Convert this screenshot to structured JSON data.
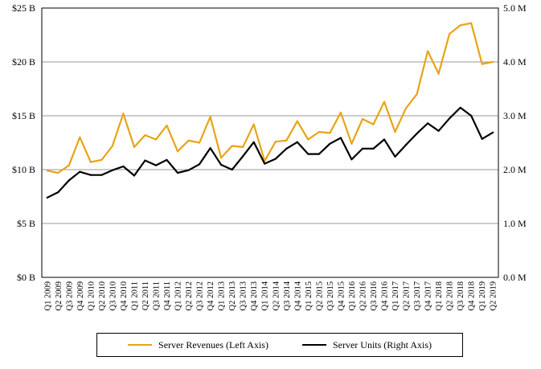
{
  "chart_data": {
    "type": "line",
    "categories": [
      "Q1 2009",
      "Q2 2009",
      "Q3 2009",
      "Q4 2009",
      "Q1 2010",
      "Q2 2010",
      "Q3 2010",
      "Q4 2010",
      "Q1 2011",
      "Q2 2011",
      "Q3 2011",
      "Q4 2011",
      "Q1 2012",
      "Q2 2012",
      "Q3 2012",
      "Q4 2012",
      "Q1 2013",
      "Q2 2013",
      "Q3 2013",
      "Q4 2013",
      "Q1 2014",
      "Q2 2014",
      "Q3 2014",
      "Q4 2014",
      "Q1 2015",
      "Q2 2015",
      "Q3 2015",
      "Q4 2015",
      "Q1 2016",
      "Q2 2016",
      "Q3 2016",
      "Q4 2016",
      "Q1 2017",
      "Q2 2017",
      "Q3 2017",
      "Q4 2017",
      "Q1 2018",
      "Q2 2018",
      "Q3 2018",
      "Q4 2018",
      "Q1 2019",
      "Q2 2019"
    ],
    "series": [
      {
        "name": "Server Revenues (Left Axis)",
        "axis": "left",
        "color": "#E8A317",
        "values": [
          9.9,
          9.7,
          10.4,
          13.0,
          10.7,
          10.9,
          12.2,
          15.2,
          12.1,
          13.2,
          12.8,
          14.1,
          11.7,
          12.7,
          12.5,
          14.9,
          11.1,
          12.2,
          12.1,
          14.2,
          10.8,
          12.6,
          12.7,
          14.5,
          12.8,
          13.5,
          13.4,
          15.3,
          12.4,
          14.7,
          14.2,
          16.3,
          13.5,
          15.7,
          17.0,
          21.0,
          18.9,
          22.6,
          23.4,
          23.6,
          19.8,
          20.0
        ]
      },
      {
        "name": "Server Units (Right Axis)",
        "axis": "right",
        "color": "#000000",
        "values": [
          1.48,
          1.58,
          1.8,
          1.96,
          1.9,
          1.9,
          1.99,
          2.06,
          1.89,
          2.17,
          2.08,
          2.18,
          1.94,
          1.99,
          2.1,
          2.4,
          2.09,
          2.0,
          2.25,
          2.51,
          2.11,
          2.2,
          2.39,
          2.51,
          2.29,
          2.29,
          2.48,
          2.59,
          2.19,
          2.39,
          2.39,
          2.56,
          2.24,
          2.46,
          2.67,
          2.86,
          2.72,
          2.95,
          3.15,
          3.0,
          2.57,
          2.69
        ]
      }
    ],
    "left_axis": {
      "min": 0,
      "max": 25,
      "ticks": [
        0,
        5,
        10,
        15,
        20,
        25
      ],
      "tick_labels": [
        "$0 B",
        "$5 B",
        "$10 B",
        "$15 B",
        "$20 B",
        "$25 B"
      ]
    },
    "right_axis": {
      "min": 0,
      "max": 5,
      "ticks": [
        0,
        1,
        2,
        3,
        4,
        5
      ],
      "tick_labels": [
        "0.0 M",
        "1.0 M",
        "2.0 M",
        "3.0 M",
        "4.0 M",
        "5.0 M"
      ]
    },
    "grid": true,
    "legend_position": "bottom"
  }
}
